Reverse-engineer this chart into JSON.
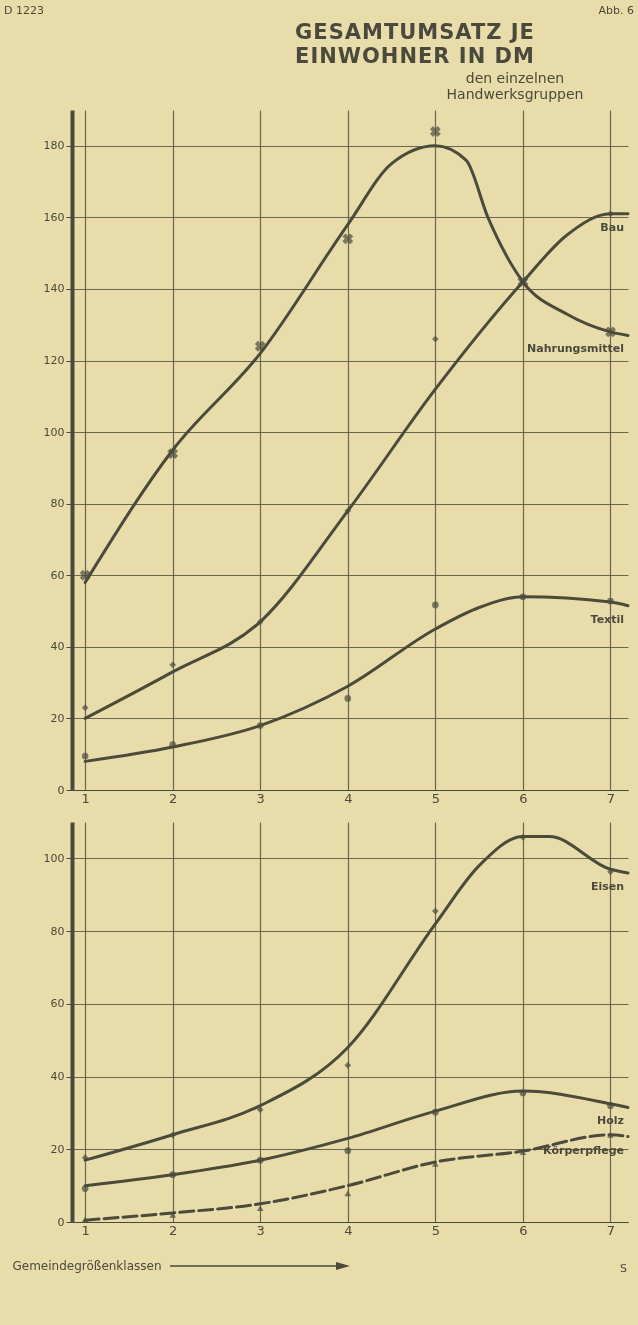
{
  "chart_data": [
    {
      "type": "line",
      "title": "GESAMTUMSATZ JE EINWOHNER IN DM",
      "subtitle": "den einzelnen Handwerksgruppen",
      "annotations": [
        "D 1223",
        "Abb. 6"
      ],
      "xlim": [
        0.85,
        7.2
      ],
      "xticks": [
        1,
        2,
        3,
        4,
        5,
        6,
        7
      ],
      "ylim": [
        0,
        190
      ],
      "yticks": [
        0,
        20,
        40,
        60,
        80,
        100,
        120,
        140,
        160,
        180
      ],
      "grid": true,
      "series": [
        {
          "name": "Bau",
          "type": "line",
          "color": "#4b4b3c",
          "x": [
            1,
            2,
            3,
            4,
            5,
            6,
            6.5,
            7,
            7.2
          ],
          "values": [
            20,
            33,
            47,
            78,
            112,
            142,
            155,
            161,
            161
          ]
        },
        {
          "name": "Nahrungsmittel",
          "type": "line",
          "color": "#4b4b3c",
          "x": [
            1,
            2,
            3,
            4,
            4.5,
            5,
            5.35,
            5.6,
            6,
            6.5,
            7,
            7.2
          ],
          "values": [
            58,
            95,
            122,
            158,
            175,
            180,
            176,
            160,
            142,
            133,
            128,
            127
          ]
        },
        {
          "name": "Textil",
          "type": "line",
          "color": "#4b4b3c",
          "x": [
            1,
            2,
            3,
            4,
            5,
            5.5,
            6,
            7,
            7.2
          ],
          "values": [
            8,
            12,
            18,
            29,
            45,
            51,
            54,
            52.5,
            51.5
          ]
        },
        {
          "type": "scatter",
          "marker": "diamond",
          "color": "#4b4b3c",
          "x": [
            1,
            2,
            3,
            4,
            5,
            6,
            7
          ],
          "values": [
            23,
            35,
            47,
            78,
            126,
            142,
            161
          ]
        },
        {
          "type": "scatter",
          "marker": "cross",
          "color": "#4b4b3c",
          "x": [
            1,
            2,
            3,
            4,
            5,
            6,
            7
          ],
          "values": [
            60,
            94,
            124,
            154,
            184,
            142,
            128
          ]
        },
        {
          "type": "scatter",
          "marker": "circle",
          "color": "#4b4b3c",
          "x": [
            1,
            2,
            3,
            4,
            5,
            6,
            7
          ],
          "values": [
            9.5,
            12.7,
            18,
            25.6,
            51.7,
            54,
            52.8
          ]
        }
      ]
    },
    {
      "type": "line",
      "xlabel": "Gemeindegrößenklassen",
      "annotations": [
        "S"
      ],
      "xlim": [
        0.85,
        7.2
      ],
      "xticks": [
        1,
        2,
        3,
        4,
        5,
        6,
        7
      ],
      "ylim": [
        0,
        110
      ],
      "yticks": [
        0,
        20,
        40,
        60,
        80,
        100
      ],
      "grid": true,
      "series": [
        {
          "name": "Eisen",
          "type": "line",
          "color": "#4b4b3c",
          "x": [
            1,
            2,
            3,
            4,
            5,
            5.5,
            6,
            6.3,
            7,
            7.2
          ],
          "values": [
            17,
            24,
            32,
            48,
            82,
            98,
            106,
            106,
            97,
            96
          ]
        },
        {
          "name": "Holz",
          "type": "line",
          "color": "#4b4b3c",
          "x": [
            1,
            2,
            3,
            4,
            5,
            6,
            7,
            7.2
          ],
          "values": [
            10,
            13,
            17,
            23,
            30.5,
            36,
            32.5,
            31.5
          ]
        },
        {
          "name": "Körperpflege",
          "type": "line",
          "line_style": "dashed",
          "color": "#4b4b3c",
          "x": [
            1,
            2,
            3,
            4,
            5,
            6,
            7,
            7.2
          ],
          "values": [
            0.5,
            2.5,
            5,
            10,
            16.5,
            19.5,
            24,
            23.5
          ]
        },
        {
          "type": "scatter",
          "marker": "diamond",
          "color": "#4b4b3c",
          "x": [
            1,
            2,
            3,
            4,
            5,
            6,
            7
          ],
          "values": [
            17.7,
            23.9,
            30.9,
            43.1,
            85.5,
            105.8,
            96.3
          ]
        },
        {
          "type": "scatter",
          "marker": "circle",
          "color": "#4b4b3c",
          "x": [
            1,
            2,
            3,
            4,
            5,
            6,
            7
          ],
          "values": [
            9.2,
            13,
            17,
            19.6,
            30.2,
            35.5,
            32
          ]
        },
        {
          "type": "scatter",
          "marker": "triangle",
          "color": "#4b4b3c",
          "x": [
            1,
            2,
            3,
            4,
            5,
            6,
            7
          ],
          "values": [
            0.7,
            2,
            3.8,
            7.9,
            16,
            19.2,
            24
          ]
        }
      ]
    }
  ]
}
